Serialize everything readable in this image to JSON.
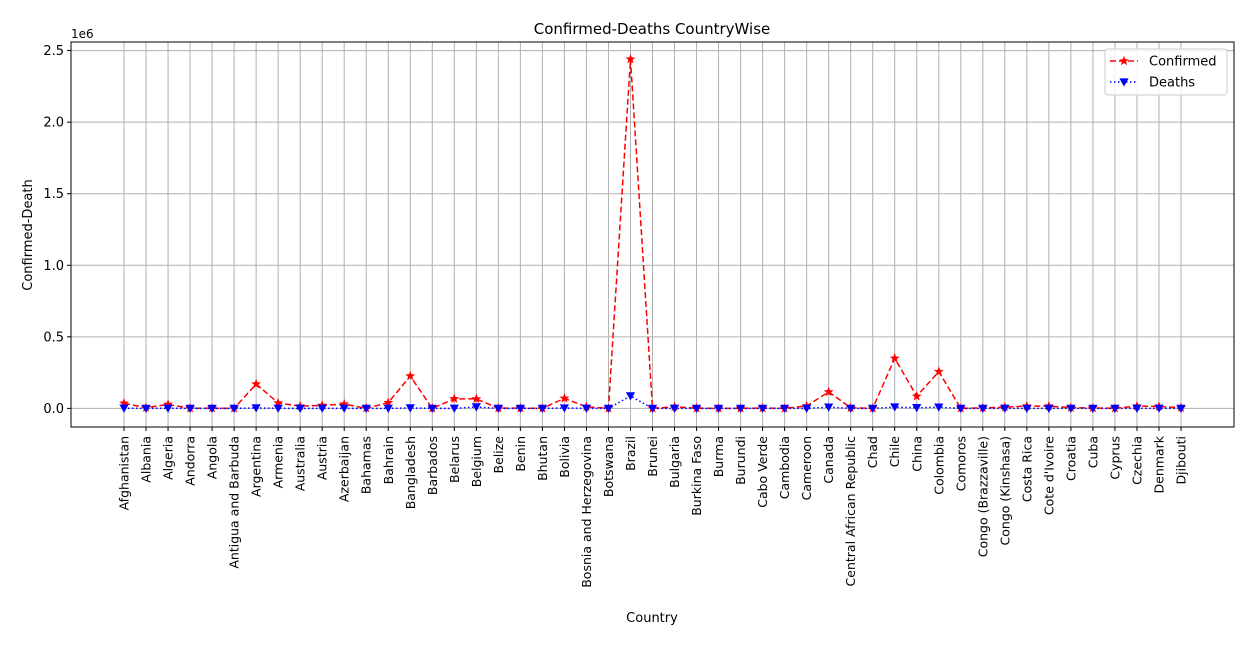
{
  "chart_data": {
    "type": "line",
    "title": "Confirmed-Deaths CountryWise",
    "xlabel": "Country",
    "ylabel": "Confirmed-Death",
    "y_scale_label": "1e6",
    "ylim": [
      -130000,
      2560000
    ],
    "yticks": [
      0,
      500000,
      1000000,
      1500000,
      2000000,
      2500000
    ],
    "ytick_labels": [
      "0.0",
      "0.5",
      "1.0",
      "1.5",
      "2.0",
      "2.5"
    ],
    "grid": true,
    "legend_position": "upper-right",
    "categories": [
      "Afghanistan",
      "Albania",
      "Algeria",
      "Andorra",
      "Angola",
      "Antigua and Barbuda",
      "Argentina",
      "Armenia",
      "Australia",
      "Austria",
      "Azerbaijan",
      "Bahamas",
      "Bahrain",
      "Bangladesh",
      "Barbados",
      "Belarus",
      "Belgium",
      "Belize",
      "Benin",
      "Bhutan",
      "Bolivia",
      "Bosnia and Herzegovina",
      "Botswana",
      "Brazil",
      "Brunei",
      "Bulgaria",
      "Burkina Faso",
      "Burma",
      "Burundi",
      "Cabo Verde",
      "Cambodia",
      "Cameroon",
      "Canada",
      "Central African Republic",
      "Chad",
      "Chile",
      "China",
      "Colombia",
      "Comoros",
      "Congo (Brazzaville)",
      "Congo (Kinshasa)",
      "Costa Rica",
      "Cote d'Ivoire",
      "Croatia",
      "Cuba",
      "Cyprus",
      "Czechia",
      "Denmark",
      "Djibouti"
    ],
    "series": [
      {
        "name": "Confirmed",
        "color": "#ff0000",
        "linestyle": "dashed",
        "marker": "star",
        "values": [
          36000,
          5000,
          28000,
          900,
          1200,
          80,
          170000,
          38000,
          16000,
          21000,
          30000,
          1000,
          40000,
          226000,
          100,
          67000,
          66000,
          1800,
          1800,
          100,
          70000,
          11000,
          800,
          2440000,
          150,
          11000,
          1100,
          350,
          400,
          2300,
          200,
          17000,
          115000,
          4600,
          900,
          350000,
          85000,
          257000,
          350,
          3200,
          9000,
          16000,
          16000,
          5000,
          2600,
          1100,
          16000,
          13500,
          5000
        ]
      },
      {
        "name": "Deaths",
        "color": "#0000ff",
        "linestyle": "dotted",
        "marker": "triangle-down",
        "values": [
          1200,
          150,
          1200,
          50,
          50,
          3,
          3200,
          700,
          200,
          700,
          400,
          30,
          140,
          3000,
          7,
          500,
          9800,
          30,
          35,
          0,
          2700,
          300,
          2,
          87000,
          3,
          380,
          55,
          6,
          1,
          22,
          0,
          390,
          8900,
          60,
          75,
          9200,
          4600,
          8800,
          7,
          55,
          220,
          130,
          100,
          130,
          87,
          19,
          380,
          610,
          58
        ]
      }
    ]
  }
}
